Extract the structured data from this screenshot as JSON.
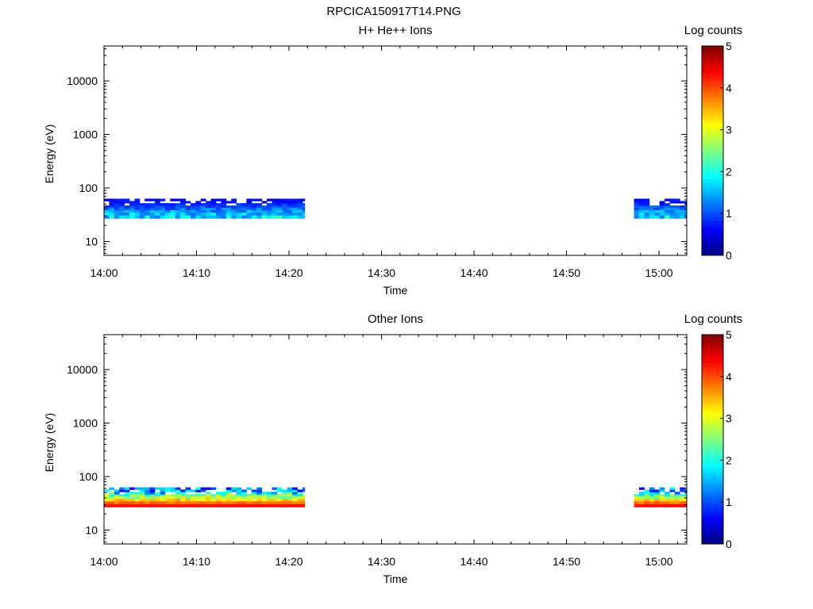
{
  "page_title": "RPCICA150917T14.PNG",
  "chart_data": [
    {
      "type": "heatmap",
      "title": "H+ He++ Ions",
      "xlabel": "Time",
      "ylabel": "Energy (eV)",
      "x_ticks": [
        "14:00",
        "14:10",
        "14:20",
        "14:30",
        "14:40",
        "14:50",
        "15:00"
      ],
      "x_range_minutes": [
        0,
        63
      ],
      "y_scale": "log",
      "y_ticks": [
        10,
        100,
        1000,
        10000
      ],
      "y_range": [
        5.5,
        45000
      ],
      "colorbar": {
        "label": "Log counts",
        "range": [
          0,
          5
        ],
        "ticks": [
          "0",
          "1",
          "2",
          "3",
          "4",
          "5"
        ],
        "colormap": "jet"
      },
      "data_segments": [
        {
          "start_minute": 0,
          "end_minute": 21.7,
          "energy_range": [
            27,
            63
          ],
          "dominant_log_counts": [
            0.5,
            2.2
          ]
        },
        {
          "start_minute": 57.3,
          "end_minute": 63,
          "energy_range": [
            27,
            63
          ],
          "dominant_log_counts": [
            0.5,
            2.2
          ]
        }
      ]
    },
    {
      "type": "heatmap",
      "title": "Other Ions",
      "xlabel": "Time",
      "ylabel": "Energy (eV)",
      "x_ticks": [
        "14:00",
        "14:10",
        "14:20",
        "14:30",
        "14:40",
        "14:50",
        "15:00"
      ],
      "x_range_minutes": [
        0,
        63
      ],
      "y_scale": "log",
      "y_ticks": [
        10,
        100,
        1000,
        10000
      ],
      "y_range": [
        5.5,
        45000
      ],
      "colorbar": {
        "label": "Log counts",
        "range": [
          0,
          5
        ],
        "ticks": [
          "0",
          "1",
          "2",
          "3",
          "4",
          "5"
        ],
        "colormap": "jet"
      },
      "data_segments": [
        {
          "start_minute": 0,
          "end_minute": 21.7,
          "energy_range": [
            27,
            63
          ],
          "dominant_log_counts": [
            0.5,
            4.3
          ]
        },
        {
          "start_minute": 57.3,
          "end_minute": 63,
          "energy_range": [
            27,
            63
          ],
          "dominant_log_counts": [
            0.5,
            4.3
          ]
        }
      ]
    }
  ]
}
